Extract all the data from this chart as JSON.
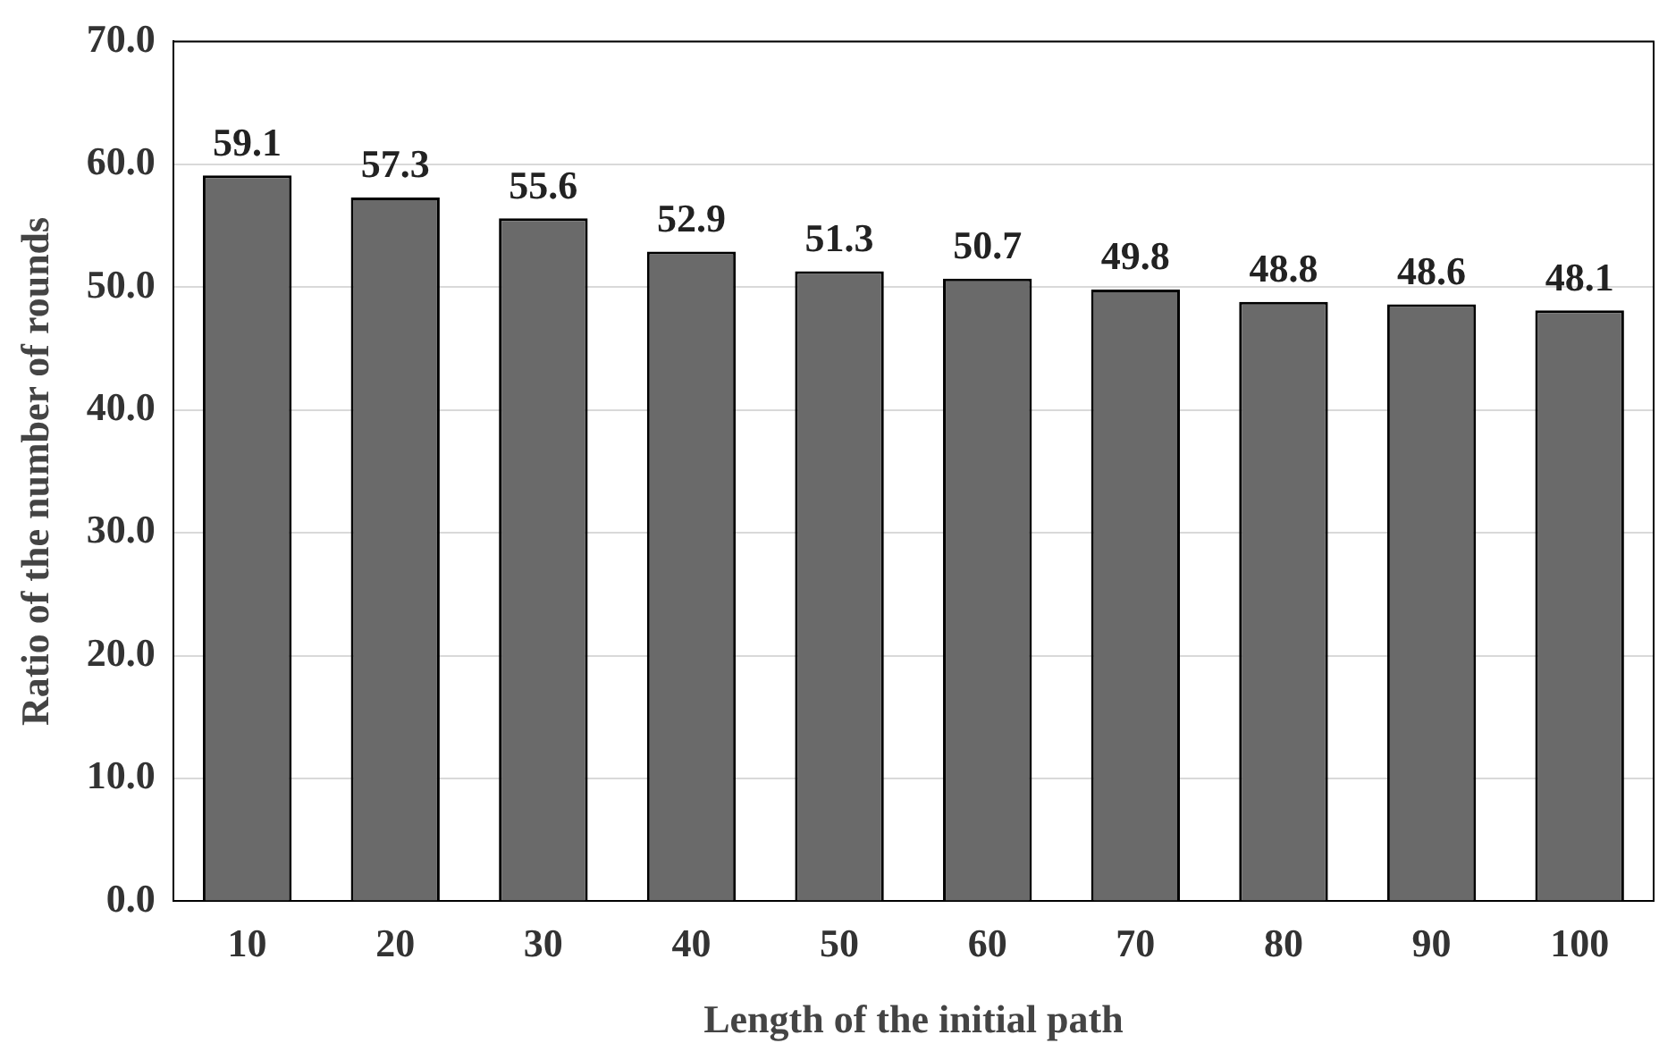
{
  "chart_data": {
    "type": "bar",
    "xlabel": "Length of the initial path",
    "ylabel": "Ratio of the number of rounds",
    "categories": [
      "10",
      "20",
      "30",
      "40",
      "50",
      "60",
      "70",
      "80",
      "90",
      "100"
    ],
    "values": [
      59.1,
      57.3,
      55.6,
      52.9,
      51.3,
      50.7,
      49.8,
      48.8,
      48.6,
      48.1
    ],
    "color": "#6a6a6a",
    "ylim": [
      0,
      70
    ],
    "yticks": [
      {
        "value": 0,
        "label": "0.0"
      },
      {
        "value": 10,
        "label": "10.0"
      },
      {
        "value": 20,
        "label": "20.0"
      },
      {
        "value": 30,
        "label": "30.0"
      },
      {
        "value": 40,
        "label": "40.0"
      },
      {
        "value": 50,
        "label": "50.0"
      },
      {
        "value": 60,
        "label": "60.0"
      },
      {
        "value": 70,
        "label": "70.0"
      }
    ],
    "grid": "y",
    "data_labels": true,
    "legend": false
  }
}
